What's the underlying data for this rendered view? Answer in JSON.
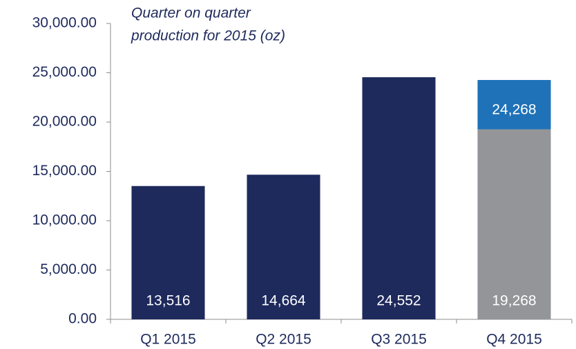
{
  "chart_data": {
    "type": "stacked_bar",
    "title": [
      "Quarter on quarter",
      "production for 2015 (oz)"
    ],
    "categories": [
      "Q1 2015",
      "Q2 2015",
      "Q3 2015",
      "Q4 2015"
    ],
    "series": [
      {
        "color": "#1f2a5c",
        "values": [
          13516,
          14664,
          24552,
          null
        ],
        "value_labels": [
          "13,516",
          "14,664",
          "24,552",
          null
        ]
      },
      {
        "color": "#939598",
        "values": [
          null,
          null,
          null,
          19268
        ],
        "value_labels": [
          null,
          null,
          null,
          "19,268"
        ]
      },
      {
        "color": "#1f72b8",
        "values": [
          null,
          null,
          null,
          5000
        ]
      }
    ],
    "totals": [
      null,
      null,
      null,
      24268
    ],
    "total_labels": [
      null,
      null,
      null,
      "24,268"
    ],
    "ylim": [
      0,
      30000
    ],
    "yticks": [
      {
        "value": 0,
        "label": "0.00"
      },
      {
        "value": 5000,
        "label": "5,000.00"
      },
      {
        "value": 10000,
        "label": "10,000.00"
      },
      {
        "value": 15000,
        "label": "15,000.00"
      },
      {
        "value": 20000,
        "label": "20,000.00"
      },
      {
        "value": 25000,
        "label": "25,000.00"
      },
      {
        "value": 30000,
        "label": "30,000.00"
      }
    ],
    "grid": false
  }
}
